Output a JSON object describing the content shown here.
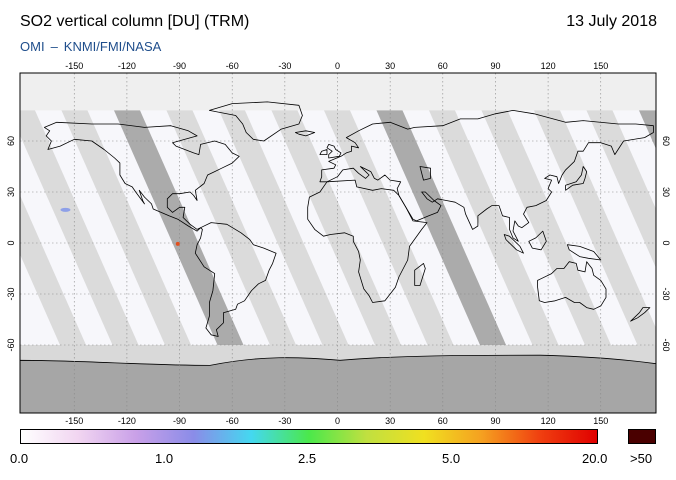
{
  "header": {
    "title": "SO2 vertical column [DU] (TRM)",
    "date": "13 July 2018",
    "credit_left": "OMI",
    "credit_sep": "–",
    "credit_right": "KNMI/FMI/NASA"
  },
  "map": {
    "projection": "equirectangular",
    "lon_ticks": [
      "-150",
      "-120",
      "-90",
      "-60",
      "-30",
      "0",
      "30",
      "60",
      "90",
      "120",
      "150"
    ],
    "lat_ticks": [
      "60",
      "30",
      "0",
      "-30",
      "-60"
    ],
    "grid": true,
    "colors": {
      "swath_light": "#d9d9d9",
      "swath_dark": "#a6a6a6",
      "background": "#f7f7fb",
      "coast": "#000000"
    },
    "hotspots": [
      {
        "lon": -155,
        "lat": 19.5,
        "value": 2.0
      },
      {
        "lon": -91,
        "lat": -0.5,
        "value": 20.0
      }
    ]
  },
  "colorbar": {
    "tick_labels": [
      "0.0",
      "1.0",
      "2.5",
      "5.0",
      "20.0"
    ],
    "overflow_label": ">50",
    "overflow_color": "#4a0000",
    "colors": [
      "#ffffff",
      "#f1d5f1",
      "#c9a0e8",
      "#8a8ce8",
      "#44d8f0",
      "#4be84b",
      "#c0e040",
      "#f0e020",
      "#f5a020",
      "#f04010",
      "#e00000"
    ]
  }
}
